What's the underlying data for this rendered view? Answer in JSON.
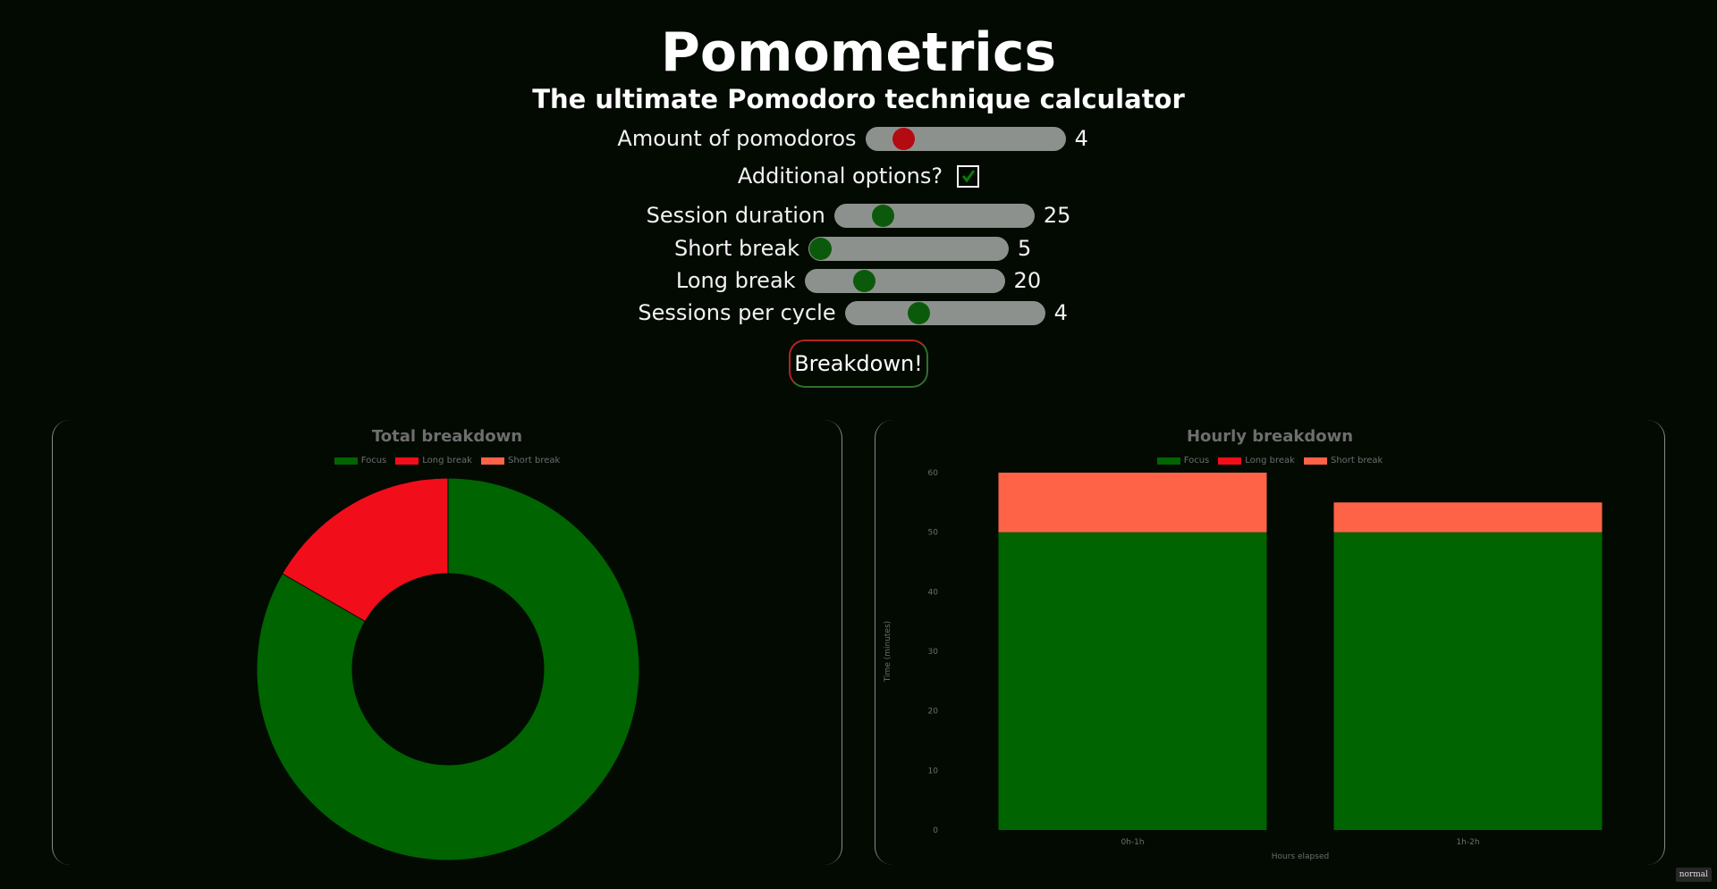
{
  "header": {
    "title": "Pomometrics",
    "subtitle": "The ultimate Pomodoro technique calculator"
  },
  "controls": {
    "pomodoros": {
      "label": "Amount of pomodoros",
      "value": "4",
      "fraction": 0.15
    },
    "additional": {
      "label": "Additional options?",
      "checked": true
    },
    "session_duration": {
      "label": "Session duration",
      "value": "25",
      "fraction": 0.21
    },
    "short_break": {
      "label": "Short break",
      "value": "5",
      "fraction": 0.0
    },
    "long_break": {
      "label": "Long break",
      "value": "20",
      "fraction": 0.27
    },
    "sessions_per_cycle": {
      "label": "Sessions per cycle",
      "value": "4",
      "fraction": 0.35
    }
  },
  "button": {
    "label": "Breakdown!"
  },
  "colors": {
    "focus": "#006400",
    "long_break": "#f20d1a",
    "short_break": "#ff6347",
    "slider_track": "#8d918d",
    "slider_knob": "#0b5a0b",
    "slider_knob_active": "#b40a12"
  },
  "chart_data": [
    {
      "type": "pie",
      "title": "Total breakdown",
      "legend": [
        "Focus",
        "Long break",
        "Short break"
      ],
      "legend_position": "top",
      "labels": [
        "Focus",
        "Long break",
        "Short break"
      ],
      "values": [
        100,
        20,
        0
      ]
    },
    {
      "type": "bar",
      "stacked": true,
      "title": "Hourly breakdown",
      "legend": [
        "Focus",
        "Long break",
        "Short break"
      ],
      "legend_position": "top",
      "categories": [
        "0h-1h",
        "1h-2h"
      ],
      "series": [
        {
          "name": "Focus",
          "values": [
            50,
            50
          ]
        },
        {
          "name": "Long break",
          "values": [
            0,
            0
          ]
        },
        {
          "name": "Short break",
          "values": [
            10,
            5
          ]
        }
      ],
      "xlabel": "Hours elapsed",
      "ylabel": "Time (minutes)",
      "ylim": [
        0,
        60
      ],
      "yticks": [
        "0",
        "10",
        "20",
        "30",
        "40",
        "50",
        "60"
      ]
    }
  ],
  "footer": {
    "badge": "normal"
  }
}
